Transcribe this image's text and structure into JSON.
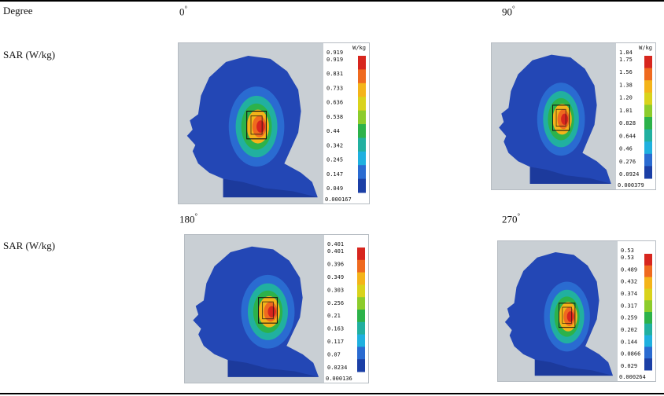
{
  "header": {
    "col1": "Degree",
    "col2": "0",
    "col3": "90"
  },
  "row_label": "SAR (W/kg)",
  "second_row": {
    "col2": "180",
    "col3": "270"
  },
  "degree_symbol": "°",
  "panels": [
    {
      "angle": "0",
      "unit": "W/kg",
      "top_value": "0.919",
      "ticks": [
        "0.919",
        "0.831",
        "0.733",
        "0.636",
        "0.538",
        "0.44",
        "0.342",
        "0.245",
        "0.147",
        "0.049"
      ],
      "min": "0.000167"
    },
    {
      "angle": "90",
      "unit": "W/kg",
      "top_value": "1.84",
      "ticks": [
        "1.75",
        "1.56",
        "1.38",
        "1.20",
        "1.01",
        "0.828",
        "0.644",
        "0.46",
        "0.276",
        "0.0924"
      ],
      "min": "0.000379"
    },
    {
      "angle": "180",
      "unit": "",
      "top_value": "0.401",
      "ticks": [
        "0.401",
        "0.396",
        "0.349",
        "0.303",
        "0.256",
        "0.21",
        "0.163",
        "0.117",
        "0.07",
        "0.0234"
      ],
      "min": "0.000136"
    },
    {
      "angle": "270",
      "unit": "",
      "top_value": "0.53",
      "ticks": [
        "0.53",
        "0.489",
        "0.432",
        "0.374",
        "0.317",
        "0.259",
        "0.202",
        "0.144",
        "0.0866",
        "0.029"
      ],
      "min": "0.000264"
    }
  ],
  "colors": {
    "head": "#2347b5",
    "head_dark": "#1c3a9c",
    "background": "#c9cfd4",
    "scale": [
      "#d7261e",
      "#ef6a1f",
      "#f4b41a",
      "#d9d31c",
      "#8ccc2c",
      "#2cb24a",
      "#21b0a0",
      "#1fb0df",
      "#2a6bd1",
      "#1b3fa6"
    ]
  }
}
